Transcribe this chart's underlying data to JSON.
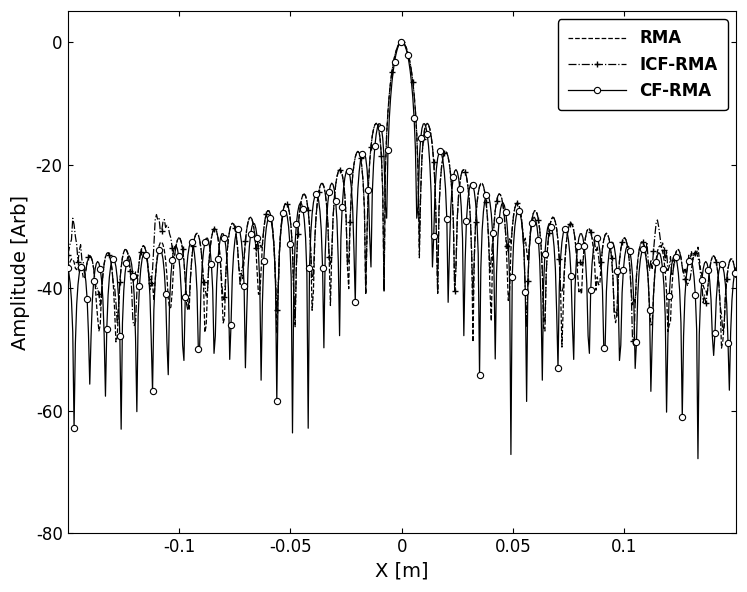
{
  "title": "",
  "xlabel": "X [m]",
  "ylabel": "Amplitude [Arb]",
  "xlim": [
    -0.15,
    0.15
  ],
  "ylim": [
    -80,
    5
  ],
  "yticks": [
    0,
    -20,
    -40,
    -60,
    -80
  ],
  "xticks": [
    -0.1,
    -0.05,
    0,
    0.05,
    0.1
  ],
  "legend": [
    "RMA",
    "ICF-RMA",
    "CF-RMA"
  ],
  "background_color": "#ffffff",
  "line_color": "#000000",
  "seed": 7
}
